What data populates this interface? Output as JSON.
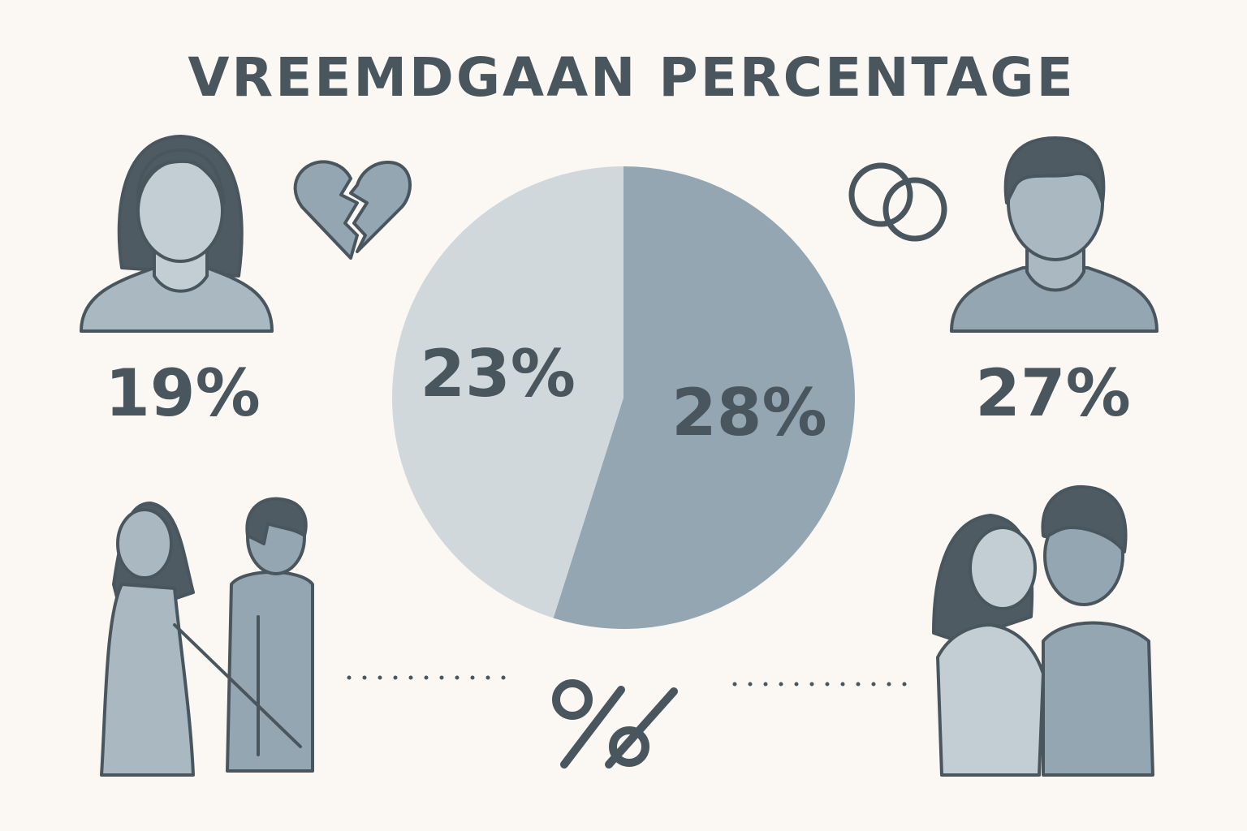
{
  "chart_data": {
    "type": "pie",
    "title": "VREEMDGAAN PERCENTAGE",
    "values": [
      28,
      23
    ],
    "value_labels": [
      "28%",
      "23%"
    ],
    "colors": [
      "#94a6b2",
      "#d0d8dc"
    ],
    "annotations": [
      "19%",
      "27%"
    ]
  }
}
